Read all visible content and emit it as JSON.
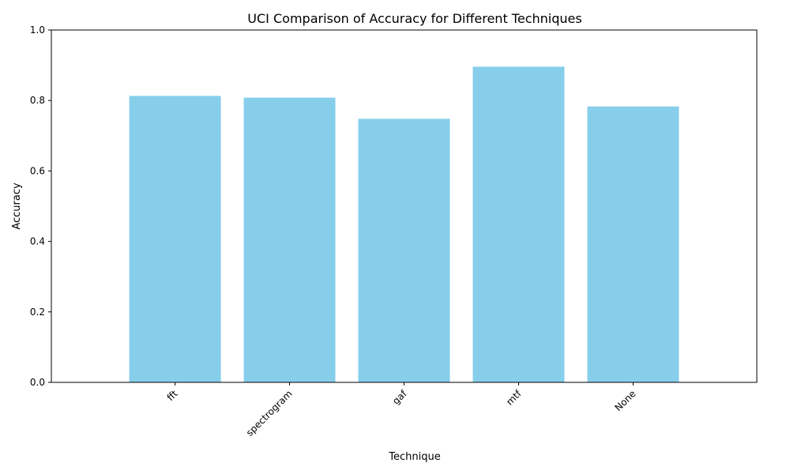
{
  "chart_data": {
    "type": "bar",
    "title": "UCI Comparison of Accuracy for Different Techniques",
    "xlabel": "Technique",
    "ylabel": "Accuracy",
    "categories": [
      "fft",
      "spectrogram",
      "gaf",
      "mtf",
      "None"
    ],
    "values": [
      0.813,
      0.808,
      0.748,
      0.896,
      0.783
    ],
    "ylim": [
      0,
      1.0
    ],
    "yticks": [
      "0.0",
      "0.2",
      "0.4",
      "0.6",
      "0.8",
      "1.0"
    ],
    "bar_color": "#87ceeb",
    "grid": false,
    "legend": "none"
  }
}
